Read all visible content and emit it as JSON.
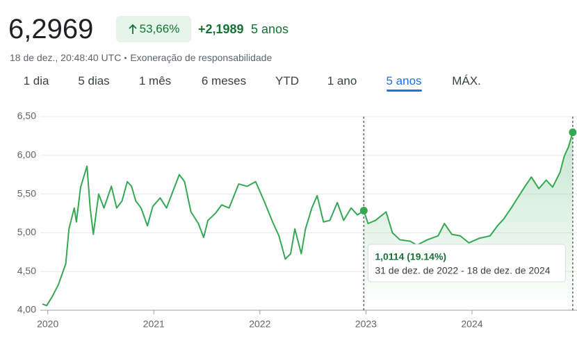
{
  "header": {
    "price": "6,2969",
    "change_percent": "53,66%",
    "change_abs": "+2,1989",
    "period": "5 anos",
    "timestamp": "18 de dez., 20:48:40 UTC",
    "disclaimer": "Exoneração de responsabilidade"
  },
  "tabs": [
    "1 dia",
    "5 dias",
    "1 mês",
    "6 meses",
    "YTD",
    "1 ano",
    "5 anos",
    "MÁX."
  ],
  "selected_tab": 6,
  "chart_data": {
    "type": "line",
    "color": "#34a853",
    "grid": true,
    "x": [
      2019.95,
      2019.99,
      2020.04,
      2020.1,
      2020.17,
      2020.2,
      2020.25,
      2020.27,
      2020.31,
      2020.37,
      2020.4,
      2020.43,
      2020.48,
      2020.53,
      2020.6,
      2020.65,
      2020.7,
      2020.75,
      2020.79,
      2020.83,
      2020.88,
      2020.94,
      2020.99,
      2021.06,
      2021.12,
      2021.17,
      2021.24,
      2021.29,
      2021.35,
      2021.42,
      2021.47,
      2021.51,
      2021.58,
      2021.64,
      2021.71,
      2021.8,
      2021.88,
      2021.96,
      2022.04,
      2022.12,
      2022.18,
      2022.24,
      2022.29,
      2022.33,
      2022.39,
      2022.43,
      2022.49,
      2022.54,
      2022.6,
      2022.66,
      2022.73,
      2022.79,
      2022.86,
      2022.92,
      2022.98,
      2023.02,
      2023.09,
      2023.19,
      2023.25,
      2023.32,
      2023.42,
      2023.48,
      2023.58,
      2023.68,
      2023.74,
      2023.81,
      2023.89,
      2023.97,
      2024.07,
      2024.17,
      2024.24,
      2024.3,
      2024.37,
      2024.43,
      2024.5,
      2024.56,
      2024.63,
      2024.7,
      2024.76,
      2024.83,
      2024.87,
      2024.91,
      2024.95
    ],
    "values": [
      4.08,
      4.06,
      4.17,
      4.33,
      4.6,
      5.05,
      5.32,
      5.14,
      5.59,
      5.86,
      5.32,
      4.98,
      5.5,
      5.32,
      5.6,
      5.32,
      5.41,
      5.66,
      5.6,
      5.41,
      5.32,
      5.09,
      5.34,
      5.45,
      5.32,
      5.5,
      5.75,
      5.66,
      5.27,
      5.12,
      4.94,
      5.16,
      5.25,
      5.36,
      5.32,
      5.63,
      5.6,
      5.66,
      5.41,
      5.14,
      4.96,
      4.66,
      4.73,
      5.05,
      4.73,
      5.05,
      5.32,
      5.48,
      5.14,
      5.16,
      5.39,
      5.16,
      5.32,
      5.23,
      5.2855,
      5.12,
      5.16,
      5.27,
      5.0,
      4.91,
      4.89,
      4.84,
      4.91,
      4.96,
      5.12,
      4.98,
      4.96,
      4.87,
      4.93,
      4.96,
      5.09,
      5.18,
      5.32,
      5.45,
      5.6,
      5.72,
      5.57,
      5.68,
      5.59,
      5.78,
      5.99,
      6.11,
      6.2969
    ],
    "xlim": [
      2019.93,
      2024.99
    ],
    "xticks": [
      2020,
      2021,
      2022,
      2023,
      2024
    ],
    "ylim": [
      4,
      6.5
    ],
    "yticks": [
      {
        "value": 4,
        "label": "4,00"
      },
      {
        "value": 4.5,
        "label": "4,50"
      },
      {
        "value": 5,
        "label": "5,00"
      },
      {
        "value": 5.5,
        "label": "5,50"
      },
      {
        "value": 6,
        "label": "6,00"
      },
      {
        "value": 6.5,
        "label": "6,50"
      }
    ],
    "selection": {
      "start_x": 2022.98,
      "start_value": 5.2855,
      "end_x": 2024.95,
      "end_value": 6.2969,
      "label": "1,0114 (19.14%)",
      "range_label": "31 de dez. de 2022 - 18 de dez. de 2024"
    }
  }
}
